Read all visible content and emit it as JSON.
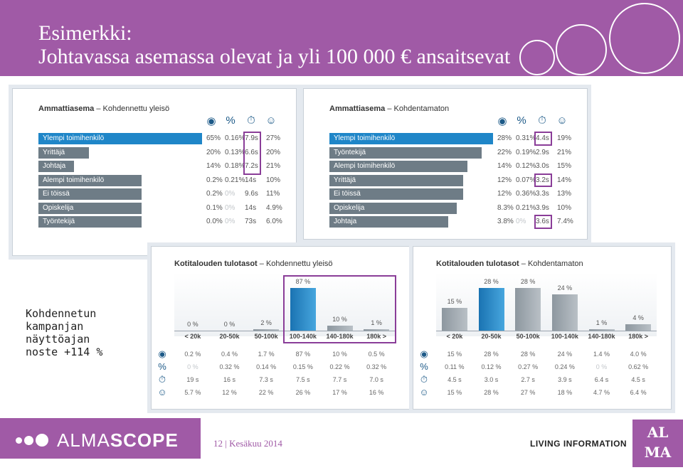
{
  "slide": {
    "title_line1": "Esimerkki:",
    "title_line2": "Johtavassa asemassa olevat ja yli 100 000 € ansaitsevat"
  },
  "note": "Kohdennetun\nkampanjan\nnäyttöajan\nnoste +114 %",
  "footer": {
    "logo_light": "ALMA",
    "logo_bold": "SCOPE",
    "page": "12  |  Kesäkuu 2014",
    "tagline": "LIVING INFORMATION",
    "alma_line1": "AL",
    "alma_line2": "MA"
  },
  "icons": [
    "eye-icon",
    "percent-icon",
    "stopwatch-icon",
    "person-icon"
  ],
  "chart_data": [
    {
      "type": "bar",
      "title_bold": "Ammattiasema",
      "title_rest": " – Kohdennettu yleisö",
      "rows": [
        {
          "label": "Ylempi toimihenkilö",
          "share": 65,
          "cells": [
            "65%",
            "0.16%",
            "7.9s",
            "27%"
          ],
          "highlight": true
        },
        {
          "label": "Yrittäjä",
          "share": 20,
          "cells": [
            "20%",
            "0.13%",
            "6.6s",
            "20%"
          ]
        },
        {
          "label": "Johtaja",
          "share": 14,
          "cells": [
            "14%",
            "0.18%",
            "7.2s",
            "21%"
          ]
        },
        {
          "label": "Alempi toimihenkilö",
          "share": 0.2,
          "cells": [
            "0.2%",
            "0.21%",
            "14s",
            "10%"
          ]
        },
        {
          "label": "Ei töissä",
          "share": 0.2,
          "cells": [
            "0.2%",
            "0%",
            "9.6s",
            "11%"
          ],
          "dim": [
            1
          ]
        },
        {
          "label": "Opiskelija",
          "share": 0.1,
          "cells": [
            "0.1%",
            "0%",
            "14s",
            "4.9%"
          ],
          "dim": [
            1
          ]
        },
        {
          "label": "Työntekijä",
          "share": 0,
          "cells": [
            "0.0%",
            "0%",
            "73s",
            "6.0%"
          ],
          "dim": [
            1
          ]
        }
      ],
      "highlight_column": 2,
      "highlight_rows": [
        0,
        1,
        2
      ]
    },
    {
      "type": "bar",
      "title_bold": "Ammattiasema",
      "title_rest": " – Kohdentamaton",
      "rows": [
        {
          "label": "Ylempi toimihenkilö",
          "share": 28,
          "cells": [
            "28%",
            "0.31%",
            "4.4s",
            "19%"
          ],
          "highlight": true
        },
        {
          "label": "Työntekijä",
          "share": 22,
          "cells": [
            "22%",
            "0.19%",
            "2.9s",
            "21%"
          ]
        },
        {
          "label": "Alempi toimihenkilö",
          "share": 14,
          "cells": [
            "14%",
            "0.12%",
            "3.0s",
            "15%"
          ]
        },
        {
          "label": "Yrittäjä",
          "share": 12,
          "cells": [
            "12%",
            "0.07%",
            "3.2s",
            "14%"
          ]
        },
        {
          "label": "Ei töissä",
          "share": 12,
          "cells": [
            "12%",
            "0.36%",
            "3.3s",
            "13%"
          ]
        },
        {
          "label": "Opiskelija",
          "share": 8.3,
          "cells": [
            "8.3%",
            "0.21%",
            "3.9s",
            "10%"
          ]
        },
        {
          "label": "Johtaja",
          "share": 3.8,
          "cells": [
            "3.8%",
            "0%",
            "3.6s",
            "7.4%"
          ],
          "dim": [
            1
          ]
        }
      ],
      "highlight_column": 2,
      "highlight_rows_single": [
        0,
        3,
        6
      ]
    },
    {
      "type": "bar",
      "title_bold": "Kotitalouden tulotasot",
      "title_rest": " – Kohdennettu yleisö",
      "categories": [
        "< 20k",
        "20-50k",
        "50-100k",
        "100-140k",
        "140-180k",
        "180k >"
      ],
      "values": [
        0,
        0,
        2,
        87,
        10,
        1
      ],
      "value_labels": [
        "0 %",
        "0 %",
        "2 %",
        "87 %",
        "10 %",
        "1 %"
      ],
      "highlight_index": 3,
      "highlight_range": [
        3,
        5
      ],
      "metrics": [
        [
          "0.2 %",
          "0.4 %",
          "1.7 %",
          "87 %",
          "10 %",
          "0.5 %"
        ],
        [
          "0 %",
          "0.32 %",
          "0.14 %",
          "0.15 %",
          "0.22 %",
          "0.32 %"
        ],
        [
          "19 s",
          "16 s",
          "7.3 s",
          "7.5 s",
          "7.7 s",
          "7.0 s"
        ],
        [
          "5.7 %",
          "12 %",
          "22 %",
          "26 %",
          "17 %",
          "16 %"
        ]
      ],
      "metric_dim": [
        [
          1,
          0
        ]
      ]
    },
    {
      "type": "bar",
      "title_bold": "Kotitalouden tulotasot",
      "title_rest": " – Kohdentamaton",
      "categories": [
        "< 20k",
        "20-50k",
        "50-100k",
        "100-140k",
        "140-180k",
        "180k >"
      ],
      "values": [
        15,
        28,
        28,
        24,
        1,
        4
      ],
      "value_labels": [
        "15 %",
        "28 %",
        "28 %",
        "24 %",
        "1 %",
        "4 %"
      ],
      "highlight_index": 1,
      "metrics": [
        [
          "15 %",
          "28 %",
          "28 %",
          "24 %",
          "1.4 %",
          "4.0 %"
        ],
        [
          "0.11 %",
          "0.12 %",
          "0.27 %",
          "0.24 %",
          "0 %",
          "0.62 %"
        ],
        [
          "4.5 s",
          "3.0 s",
          "2.7 s",
          "3.9 s",
          "6.4 s",
          "4.5 s"
        ],
        [
          "15 %",
          "28 %",
          "27 %",
          "18 %",
          "4.7 %",
          "6.4 %"
        ]
      ],
      "metric_dim": [
        [
          1,
          4
        ]
      ]
    }
  ]
}
